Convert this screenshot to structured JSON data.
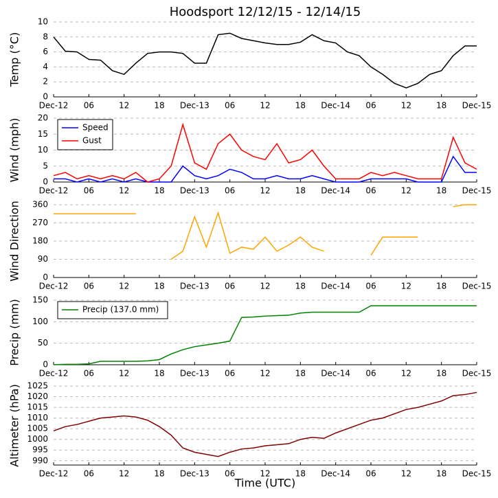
{
  "title": "Hoodsport 12/12/15 - 12/14/15",
  "xlabel": "Time (UTC)",
  "time": {
    "x": [
      0,
      2,
      4,
      6,
      8,
      10,
      12,
      14,
      16,
      18,
      20,
      22,
      24,
      26,
      28,
      30,
      32,
      34,
      36,
      38,
      40,
      42,
      44,
      46,
      48,
      50,
      52,
      54,
      56,
      58,
      60,
      62,
      64,
      66,
      68,
      70,
      72
    ],
    "xlim": [
      0,
      72
    ],
    "xticks": [
      {
        "value": 0,
        "label": "Dec-12"
      },
      {
        "value": 6,
        "label": "06"
      },
      {
        "value": 12,
        "label": "12"
      },
      {
        "value": 18,
        "label": "18"
      },
      {
        "value": 24,
        "label": "Dec-13"
      },
      {
        "value": 30,
        "label": "06"
      },
      {
        "value": 36,
        "label": "12"
      },
      {
        "value": 42,
        "label": "18"
      },
      {
        "value": 48,
        "label": "Dec-14"
      },
      {
        "value": 54,
        "label": "06"
      },
      {
        "value": 60,
        "label": "12"
      },
      {
        "value": 66,
        "label": "18"
      },
      {
        "value": 72,
        "label": "Dec-15"
      }
    ]
  },
  "chart_data": [
    {
      "type": "line",
      "ylabel": "Temp (°C)",
      "ylim": [
        0,
        10
      ],
      "yticks": [
        0,
        2,
        4,
        6,
        8,
        10
      ],
      "grid": true,
      "series": [
        {
          "name": null,
          "color": "#000000",
          "values": [
            8,
            6.1,
            6,
            5,
            4.9,
            3.5,
            3,
            4.5,
            5.8,
            6,
            6,
            5.8,
            4.5,
            4.5,
            8.3,
            8.5,
            7.8,
            7.5,
            7.2,
            7,
            7,
            7.3,
            8.3,
            7.5,
            7.2,
            6,
            5.5,
            4,
            3,
            1.8,
            1.2,
            1.8,
            3,
            3.5,
            5.5,
            6.8,
            6.8
          ]
        }
      ]
    },
    {
      "type": "line",
      "ylabel": "Wind (mph)",
      "ylim": [
        0,
        20
      ],
      "yticks": [
        0,
        5,
        10,
        15,
        20
      ],
      "grid": true,
      "legend": "upper left",
      "series": [
        {
          "name": "Speed",
          "color": "#0000ff",
          "values": [
            1,
            1,
            0,
            1,
            0,
            1,
            0,
            1,
            0,
            0,
            0,
            5,
            2,
            1,
            2,
            4,
            3,
            1,
            1,
            2,
            1,
            1,
            2,
            1,
            0,
            0,
            0,
            1,
            1,
            1,
            1,
            0,
            0,
            0,
            8,
            3,
            3
          ]
        },
        {
          "name": "Gust",
          "color": "#ff0000",
          "values": [
            2,
            3,
            1,
            2,
            1,
            2,
            1,
            3,
            0,
            1,
            5,
            18,
            6,
            4,
            12,
            15,
            10,
            8,
            7,
            12,
            6,
            7,
            10,
            5,
            1,
            1,
            1,
            3,
            2,
            3,
            2,
            1,
            1,
            1,
            14,
            6,
            4
          ]
        }
      ]
    },
    {
      "type": "line",
      "ylabel": "Wind Direction",
      "ylim": [
        0,
        360
      ],
      "yticks": [
        0,
        90,
        180,
        270,
        360
      ],
      "grid": true,
      "series": [
        {
          "name": null,
          "color": "#ffa500",
          "values": [
            315,
            315,
            315,
            315,
            315,
            315,
            315,
            315,
            null,
            null,
            90,
            130,
            300,
            150,
            320,
            120,
            150,
            140,
            200,
            130,
            160,
            200,
            150,
            130,
            null,
            null,
            null,
            110,
            200,
            200,
            200,
            200,
            null,
            null,
            350,
            360,
            360
          ]
        }
      ]
    },
    {
      "type": "line",
      "ylabel": "Precip (mm)",
      "ylim": [
        0,
        150
      ],
      "yticks": [
        0,
        50,
        100,
        150
      ],
      "grid": true,
      "legend": "upper left",
      "series": [
        {
          "name": "Precip (137.0 mm)",
          "color": "#008000",
          "values": [
            0,
            1,
            1,
            2,
            8,
            8,
            8,
            8,
            9,
            12,
            25,
            35,
            42,
            46,
            50,
            55,
            110,
            111,
            113,
            114,
            115,
            120,
            122,
            122,
            122,
            122,
            122,
            137,
            137,
            137,
            137,
            137,
            137,
            137,
            137,
            137,
            137
          ]
        }
      ]
    },
    {
      "type": "line",
      "ylabel": "Altimeter (hPa)",
      "ylim": [
        988,
        1025
      ],
      "yticks": [
        990,
        995,
        1000,
        1005,
        1010,
        1015,
        1020,
        1025
      ],
      "grid": true,
      "series": [
        {
          "name": null,
          "color": "#800000",
          "values": [
            1004,
            1006,
            1007,
            1008.5,
            1010,
            1010.5,
            1011,
            1010.5,
            1009,
            1006,
            1002,
            996,
            994,
            993,
            992,
            994,
            995.5,
            996,
            997,
            997.5,
            998,
            1000,
            1001,
            1000.5,
            1003,
            1005,
            1007,
            1009,
            1010,
            1012,
            1014,
            1015,
            1016.5,
            1018,
            1020.5,
            1021,
            1022
          ]
        }
      ]
    }
  ]
}
